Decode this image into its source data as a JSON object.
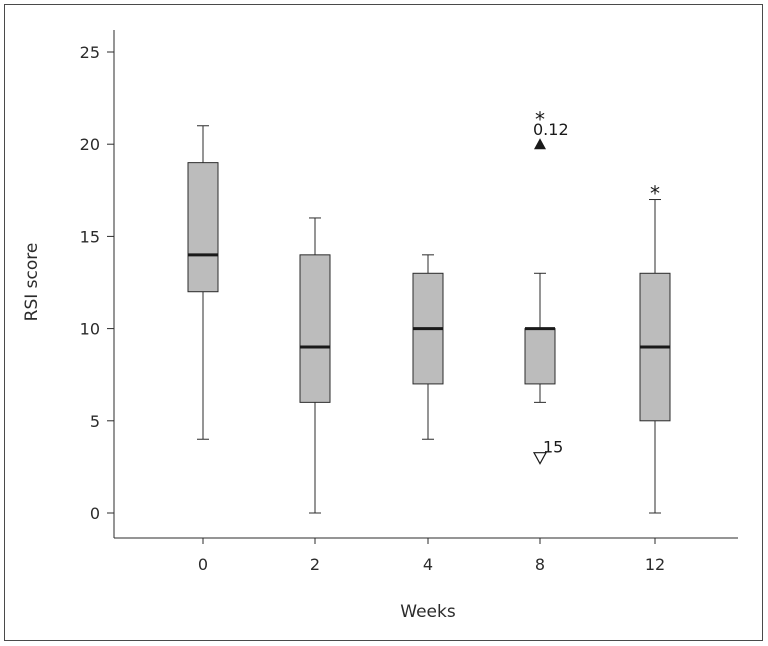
{
  "chart_data": {
    "type": "box",
    "xlabel": "Weeks",
    "ylabel": "RSI score",
    "ylim": [
      0,
      25
    ],
    "yticks": [
      0,
      5,
      10,
      15,
      20,
      25
    ],
    "categories": [
      "0",
      "2",
      "4",
      "8",
      "12"
    ],
    "boxes": [
      {
        "category": "0",
        "whisker_low": 4,
        "q1": 12,
        "median": 14,
        "q3": 19,
        "whisker_high": 21
      },
      {
        "category": "2",
        "whisker_low": 0,
        "q1": 6,
        "median": 9,
        "q3": 14,
        "whisker_high": 16
      },
      {
        "category": "4",
        "whisker_low": 4,
        "q1": 7,
        "median": 10,
        "q3": 13,
        "whisker_high": 14
      },
      {
        "category": "8",
        "whisker_low": 6,
        "q1": 7,
        "median": 10,
        "q3": 10,
        "whisker_high": 13
      },
      {
        "category": "12",
        "whisker_low": 0,
        "q1": 5,
        "median": 9,
        "q3": 13,
        "whisker_high": 17
      }
    ],
    "markers": [
      {
        "category": "8",
        "y": 20,
        "shape": "filled-triangle-up",
        "label": "0.12"
      },
      {
        "category": "8",
        "y": 3,
        "shape": "open-triangle-down",
        "label": "15"
      }
    ],
    "annotations": [
      {
        "category": "8",
        "y": 21.6,
        "text": "*"
      },
      {
        "category": "12",
        "y": 17.6,
        "text": "*"
      }
    ],
    "colors": {
      "box_fill": "#bcbcbc",
      "stroke": "#2b2b2b",
      "median": "#1a1a1a"
    },
    "grid": false
  }
}
